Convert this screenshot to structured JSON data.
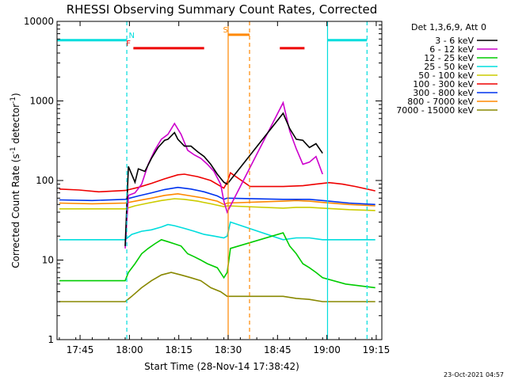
{
  "chart_data": {
    "type": "line",
    "title": "RHESSI Observing Summary Count Rates, Corrected",
    "xlabel": "Start Time (28-Nov-14 17:38:42)",
    "ylabel_base": "Corrected Count Rate (s",
    "ylabel_sup1": "-1",
    "ylabel_mid": " detector",
    "ylabel_sup2": "-1",
    "ylabel_end": ")",
    "y_scale": "log",
    "ylim": [
      1,
      10000
    ],
    "xlim_minutes": [
      -0.7,
      98
    ],
    "x_ticks": [
      {
        "t": 6.3,
        "label": "17:45"
      },
      {
        "t": 21.3,
        "label": "18:00"
      },
      {
        "t": 36.3,
        "label": "18:15"
      },
      {
        "t": 51.3,
        "label": "18:30"
      },
      {
        "t": 66.3,
        "label": "18:45"
      },
      {
        "t": 81.3,
        "label": "19:00"
      },
      {
        "t": 96.3,
        "label": "19:15"
      }
    ],
    "y_ticks": [
      {
        "v": 1,
        "label": "1"
      },
      {
        "v": 10,
        "label": "10"
      },
      {
        "v": 100,
        "label": "100"
      },
      {
        "v": 1000,
        "label": "1000"
      },
      {
        "v": 10000,
        "label": "10000"
      }
    ],
    "legend_header": "Det 1,3,6,9, Att 0",
    "legend_position": "outside-right",
    "series": [
      {
        "name": "3 - 6 keV",
        "color": "#000000",
        "points": [
          [
            20,
            15
          ],
          [
            21,
            150
          ],
          [
            23,
            95
          ],
          [
            24,
            140
          ],
          [
            26,
            130
          ],
          [
            28,
            190
          ],
          [
            30,
            260
          ],
          [
            32,
            320
          ],
          [
            33,
            330
          ],
          [
            35,
            400
          ],
          [
            36,
            330
          ],
          [
            38,
            270
          ],
          [
            40,
            270
          ],
          [
            42,
            230
          ],
          [
            44,
            200
          ],
          [
            46,
            160
          ],
          [
            48,
            120
          ],
          [
            50,
            95
          ],
          [
            51,
            90
          ],
          [
            68,
            700
          ],
          [
            70,
            450
          ],
          [
            72,
            330
          ],
          [
            74,
            320
          ],
          [
            76,
            260
          ],
          [
            78,
            290
          ],
          [
            80,
            220
          ]
        ]
      },
      {
        "name": "6 - 12 keV",
        "color": "#cc00cc",
        "points": [
          [
            20,
            14
          ],
          [
            21,
            65
          ],
          [
            23,
            70
          ],
          [
            25,
            90
          ],
          [
            27,
            160
          ],
          [
            29,
            240
          ],
          [
            31,
            330
          ],
          [
            33,
            380
          ],
          [
            35,
            520
          ],
          [
            37,
            380
          ],
          [
            39,
            240
          ],
          [
            41,
            210
          ],
          [
            43,
            190
          ],
          [
            45,
            160
          ],
          [
            47,
            130
          ],
          [
            49,
            90
          ],
          [
            50,
            55
          ],
          [
            51,
            40
          ],
          [
            68,
            950
          ],
          [
            70,
            420
          ],
          [
            72,
            250
          ],
          [
            74,
            160
          ],
          [
            76,
            170
          ],
          [
            78,
            200
          ],
          [
            80,
            120
          ]
        ]
      },
      {
        "name": "12 - 25 keV",
        "color": "#00cc00",
        "points": [
          [
            0,
            5.5
          ],
          [
            20,
            5.5
          ],
          [
            21,
            7
          ],
          [
            23,
            9
          ],
          [
            25,
            12
          ],
          [
            27,
            14
          ],
          [
            29,
            16
          ],
          [
            31,
            18
          ],
          [
            33,
            17
          ],
          [
            35,
            16
          ],
          [
            37,
            15
          ],
          [
            39,
            12
          ],
          [
            41,
            11
          ],
          [
            43,
            10
          ],
          [
            45,
            9
          ],
          [
            48,
            8
          ],
          [
            50,
            6
          ],
          [
            51,
            7
          ],
          [
            52,
            14
          ],
          [
            68,
            22
          ],
          [
            70,
            15
          ],
          [
            72,
            12
          ],
          [
            74,
            9
          ],
          [
            76,
            8
          ],
          [
            78,
            7
          ],
          [
            80,
            6
          ],
          [
            87,
            5
          ],
          [
            96,
            4.5
          ]
        ]
      },
      {
        "name": "25 - 50 keV",
        "color": "#00dddd",
        "points": [
          [
            0,
            18
          ],
          [
            20,
            18
          ],
          [
            22,
            21
          ],
          [
            25,
            23
          ],
          [
            28,
            24
          ],
          [
            31,
            26
          ],
          [
            33,
            28
          ],
          [
            35,
            27
          ],
          [
            38,
            25
          ],
          [
            41,
            23
          ],
          [
            44,
            21
          ],
          [
            47,
            20
          ],
          [
            50,
            19
          ],
          [
            51,
            20
          ],
          [
            52,
            30
          ],
          [
            68,
            18
          ],
          [
            72,
            19
          ],
          [
            76,
            19
          ],
          [
            80,
            18
          ],
          [
            88,
            18
          ],
          [
            96,
            18
          ]
        ]
      },
      {
        "name": "50 - 100 keV",
        "color": "#cccc00",
        "points": [
          [
            0,
            44
          ],
          [
            20,
            44
          ],
          [
            23,
            48
          ],
          [
            27,
            52
          ],
          [
            31,
            56
          ],
          [
            35,
            59
          ],
          [
            38,
            58
          ],
          [
            42,
            55
          ],
          [
            46,
            51
          ],
          [
            50,
            47
          ],
          [
            51,
            48
          ],
          [
            68,
            45
          ],
          [
            72,
            46
          ],
          [
            76,
            46
          ],
          [
            80,
            45
          ],
          [
            88,
            43
          ],
          [
            96,
            42
          ]
        ]
      },
      {
        "name": "100 - 300 keV",
        "color": "#ee0000",
        "points": [
          [
            0,
            78
          ],
          [
            6,
            76
          ],
          [
            12,
            72
          ],
          [
            20,
            75
          ],
          [
            24,
            82
          ],
          [
            28,
            92
          ],
          [
            32,
            105
          ],
          [
            36,
            118
          ],
          [
            38,
            120
          ],
          [
            42,
            112
          ],
          [
            46,
            100
          ],
          [
            50,
            80
          ],
          [
            51,
            95
          ],
          [
            52,
            125
          ],
          [
            58,
            84
          ],
          [
            68,
            84
          ],
          [
            74,
            86
          ],
          [
            78,
            90
          ],
          [
            82,
            94
          ],
          [
            86,
            90
          ],
          [
            90,
            84
          ],
          [
            96,
            74
          ]
        ]
      },
      {
        "name": "300 - 800 keV",
        "color": "#0033ee",
        "points": [
          [
            0,
            57
          ],
          [
            10,
            56
          ],
          [
            20,
            58
          ],
          [
            24,
            64
          ],
          [
            28,
            70
          ],
          [
            32,
            77
          ],
          [
            36,
            82
          ],
          [
            40,
            78
          ],
          [
            44,
            72
          ],
          [
            48,
            64
          ],
          [
            50,
            58
          ],
          [
            51,
            60
          ],
          [
            68,
            58
          ],
          [
            72,
            58
          ],
          [
            76,
            58
          ],
          [
            80,
            56
          ],
          [
            88,
            52
          ],
          [
            96,
            50
          ]
        ]
      },
      {
        "name": "800 - 7000 keV",
        "color": "#ff8800",
        "points": [
          [
            0,
            52
          ],
          [
            10,
            51
          ],
          [
            20,
            52
          ],
          [
            24,
            56
          ],
          [
            28,
            60
          ],
          [
            32,
            65
          ],
          [
            36,
            68
          ],
          [
            40,
            64
          ],
          [
            44,
            60
          ],
          [
            48,
            55
          ],
          [
            50,
            50
          ],
          [
            51,
            52
          ],
          [
            68,
            55
          ],
          [
            72,
            56
          ],
          [
            76,
            55
          ],
          [
            80,
            53
          ],
          [
            88,
            50
          ],
          [
            96,
            48
          ]
        ]
      },
      {
        "name": "7000 - 15000 keV",
        "color": "#888800",
        "points": [
          [
            0,
            3
          ],
          [
            20,
            3
          ],
          [
            22,
            3.5
          ],
          [
            25,
            4.5
          ],
          [
            28,
            5.5
          ],
          [
            31,
            6.5
          ],
          [
            34,
            7
          ],
          [
            37,
            6.5
          ],
          [
            40,
            6
          ],
          [
            43,
            5.5
          ],
          [
            46,
            4.5
          ],
          [
            49,
            4
          ],
          [
            51,
            3.5
          ],
          [
            68,
            3.5
          ],
          [
            72,
            3.3
          ],
          [
            76,
            3.2
          ],
          [
            80,
            3
          ],
          [
            88,
            3
          ],
          [
            96,
            3
          ]
        ]
      }
    ],
    "flags": [
      {
        "letter": "N",
        "color": "#00dddd",
        "level": 5800,
        "segments": [
          [
            -0.7,
            20.5
          ],
          [
            81.5,
            93.5
          ]
        ],
        "letter_at": 22
      },
      {
        "letter": "F",
        "color": "#ee0000",
        "level": 4600,
        "segments": [
          [
            22.5,
            44
          ],
          [
            67,
            74.5
          ]
        ],
        "letter_at": 21
      },
      {
        "letter": "S",
        "color": "#ff8800",
        "level": 6800,
        "segments": [
          [
            51.3,
            57.8
          ]
        ],
        "letter_at": 50.5
      }
    ],
    "vlines": [
      {
        "t": 20.5,
        "color": "#00dddd",
        "style": "dashed"
      },
      {
        "t": 51.3,
        "color": "#ff8800",
        "style": "solid"
      },
      {
        "t": 57.8,
        "color": "#ff8800",
        "style": "dashed"
      },
      {
        "t": 81.5,
        "color": "#00dddd",
        "style": "solid"
      },
      {
        "t": 93.5,
        "color": "#00dddd",
        "style": "dashed"
      }
    ],
    "gaps": [
      [
        51.3,
        62.4
      ]
    ],
    "timestamp": "23-Oct-2021 04:57"
  }
}
